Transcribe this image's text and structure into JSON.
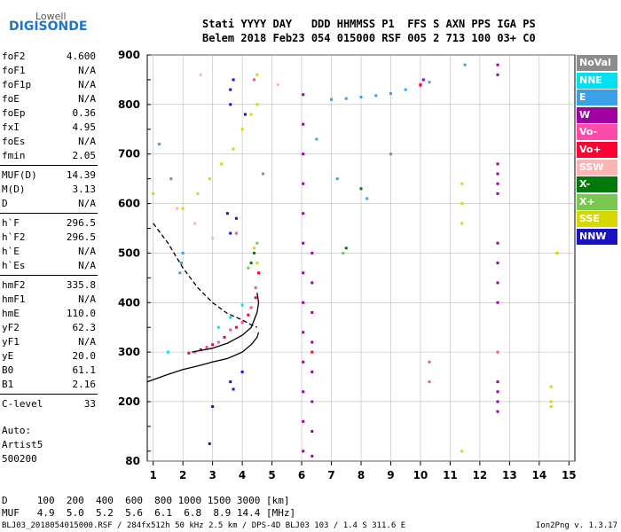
{
  "logo": {
    "line1": "Lowell",
    "line2": "DIGISONDE"
  },
  "header": {
    "row1": "Stati YYYY DAY   DDD HHMMSS P1  FFS S AXN PPS IGA PS",
    "row2": "Belem 2018 Feb23 054 015000 RSF 005 2 713 100 03+ C0"
  },
  "params_group1": [
    {
      "label": "foF2",
      "value": "4.600"
    },
    {
      "label": "foF1",
      "value": "N/A"
    },
    {
      "label": "foF1p",
      "value": "N/A"
    },
    {
      "label": "foE",
      "value": "N/A"
    },
    {
      "label": "foEp",
      "value": "0.36"
    },
    {
      "label": "fxI",
      "value": "4.95"
    },
    {
      "label": "foEs",
      "value": "N/A"
    },
    {
      "label": "fmin",
      "value": "2.05"
    }
  ],
  "params_group2": [
    {
      "label": "MUF(D)",
      "value": "14.39"
    },
    {
      "label": "M(D)",
      "value": "3.13"
    },
    {
      "label": "D",
      "value": "N/A"
    }
  ],
  "params_group3": [
    {
      "label": "h`F",
      "value": "296.5"
    },
    {
      "label": "h`F2",
      "value": "296.5"
    },
    {
      "label": "h`E",
      "value": "N/A"
    },
    {
      "label": "h`Es",
      "value": "N/A"
    }
  ],
  "params_group4": [
    {
      "label": "hmF2",
      "value": "335.8"
    },
    {
      "label": "hmF1",
      "value": "N/A"
    },
    {
      "label": "hmE",
      "value": "110.0"
    },
    {
      "label": "yF2",
      "value": "62.3"
    },
    {
      "label": "yF1",
      "value": "N/A"
    },
    {
      "label": "yE",
      "value": "20.0"
    },
    {
      "label": "B0",
      "value": "61.1"
    },
    {
      "label": "B1",
      "value": "2.16"
    }
  ],
  "params_group5": [
    {
      "label": "C-level",
      "value": "33"
    }
  ],
  "autoscale": {
    "line1": "Auto:",
    "line2": "Artist5",
    "line3": "500200"
  },
  "legend": [
    {
      "label": "NoVal",
      "color": "#8c8c8c"
    },
    {
      "label": "NNE",
      "color": "#00e0f0"
    },
    {
      "label": "E",
      "color": "#3aa0e8"
    },
    {
      "label": "W",
      "color": "#a000a0"
    },
    {
      "label": "Vo-",
      "color": "#ff4aa8"
    },
    {
      "label": "Vo+",
      "color": "#ff0033"
    },
    {
      "label": "SSW",
      "color": "#ffb4b4"
    },
    {
      "label": "X-",
      "color": "#00780a"
    },
    {
      "label": "X+",
      "color": "#78c850"
    },
    {
      "label": "SSE",
      "color": "#d8d800"
    },
    {
      "label": "NNW",
      "color": "#1a12c0"
    }
  ],
  "muf_table": {
    "row1": "D     100  200  400  600  800 1000 1500 3000 [km]",
    "row2": "MUF   4.9  5.0  5.2  5.6  6.1  6.8  8.9 14.4 [MHz]"
  },
  "footer": {
    "left": "BLJ03_2018054015000.RSF / 284fx512h 50 kHz 2.5 km / DPS-4D BLJ03 103 / 1.4 S 311.6 E",
    "right": "Ion2Png v. 1.3.17"
  },
  "chart_data": {
    "type": "scatter",
    "title": "",
    "xlabel": "",
    "ylabel": "",
    "xlim": [
      0.8,
      15.2
    ],
    "ylim": [
      80,
      900
    ],
    "x_ticks": [
      "1",
      "2",
      "3",
      "4",
      "5",
      "6",
      "7",
      "8",
      "9",
      "10",
      "11",
      "12",
      "13",
      "14",
      "15"
    ],
    "y_ticks": [
      "80",
      "200",
      "300",
      "400",
      "500",
      "600",
      "700",
      "800",
      "900"
    ],
    "grid": true,
    "legend_position": "right",
    "series": [
      {
        "name": "E",
        "color": "#3aa0e8",
        "points": [
          [
            7.0,
            810
          ],
          [
            7.5,
            812
          ],
          [
            8.0,
            815
          ],
          [
            8.5,
            818
          ],
          [
            9.0,
            822
          ],
          [
            9.5,
            830
          ],
          [
            10.0,
            838
          ],
          [
            10.3,
            845
          ],
          [
            2.0,
            500
          ],
          [
            1.95,
            480
          ],
          [
            1.9,
            460
          ],
          [
            1.2,
            720
          ],
          [
            11.5,
            880
          ],
          [
            6.5,
            730
          ],
          [
            7.2,
            650
          ],
          [
            8.2,
            610
          ]
        ]
      },
      {
        "name": "W",
        "color": "#a000a0",
        "points": [
          [
            6.05,
            820
          ],
          [
            6.05,
            760
          ],
          [
            6.05,
            700
          ],
          [
            6.05,
            640
          ],
          [
            6.05,
            580
          ],
          [
            6.05,
            520
          ],
          [
            6.05,
            460
          ],
          [
            6.05,
            400
          ],
          [
            6.05,
            340
          ],
          [
            6.05,
            280
          ],
          [
            6.05,
            220
          ],
          [
            6.05,
            160
          ],
          [
            6.05,
            100
          ],
          [
            6.35,
            500
          ],
          [
            6.35,
            440
          ],
          [
            6.35,
            380
          ],
          [
            6.35,
            320
          ],
          [
            6.35,
            260
          ],
          [
            6.35,
            200
          ],
          [
            6.35,
            140
          ],
          [
            6.35,
            90
          ],
          [
            12.6,
            880
          ],
          [
            12.6,
            860
          ],
          [
            12.6,
            680
          ],
          [
            12.6,
            660
          ],
          [
            12.6,
            640
          ],
          [
            12.6,
            620
          ],
          [
            12.6,
            520
          ],
          [
            12.6,
            480
          ],
          [
            12.6,
            440
          ],
          [
            12.6,
            400
          ],
          [
            12.6,
            240
          ],
          [
            12.6,
            220
          ],
          [
            12.6,
            200
          ],
          [
            12.6,
            180
          ],
          [
            10.1,
            850
          ]
        ]
      },
      {
        "name": "Vo-",
        "color": "#ff4aa8",
        "points": [
          [
            2.4,
            300
          ],
          [
            2.8,
            310
          ],
          [
            3.2,
            320
          ],
          [
            3.6,
            345
          ],
          [
            4.0,
            360
          ],
          [
            4.3,
            390
          ],
          [
            4.45,
            430
          ],
          [
            3.8,
            540
          ],
          [
            4.4,
            850
          ],
          [
            10.3,
            240
          ],
          [
            10.3,
            280
          ],
          [
            12.6,
            300
          ]
        ]
      },
      {
        "name": "Vo+",
        "color": "#ff0033",
        "points": [
          [
            2.2,
            298
          ],
          [
            2.6,
            305
          ],
          [
            3.0,
            315
          ],
          [
            3.4,
            330
          ],
          [
            3.8,
            350
          ],
          [
            4.2,
            375
          ],
          [
            4.45,
            410
          ],
          [
            4.55,
            460
          ],
          [
            10.0,
            840
          ],
          [
            6.35,
            300
          ]
        ]
      },
      {
        "name": "SSE",
        "color": "#d8d800",
        "points": [
          [
            1.0,
            620
          ],
          [
            2.0,
            590
          ],
          [
            2.5,
            620
          ],
          [
            2.9,
            650
          ],
          [
            3.3,
            680
          ],
          [
            3.7,
            710
          ],
          [
            4.0,
            750
          ],
          [
            4.3,
            780
          ],
          [
            4.5,
            800
          ],
          [
            4.5,
            860
          ],
          [
            4.4,
            510
          ],
          [
            4.5,
            480
          ],
          [
            11.4,
            640
          ],
          [
            11.4,
            600
          ],
          [
            11.4,
            560
          ],
          [
            11.4,
            100
          ],
          [
            14.4,
            230
          ],
          [
            14.4,
            200
          ],
          [
            14.4,
            190
          ],
          [
            14.6,
            500
          ]
        ]
      },
      {
        "name": "NNW",
        "color": "#1a12c0",
        "points": [
          [
            3.7,
            850
          ],
          [
            3.6,
            830
          ],
          [
            3.6,
            800
          ],
          [
            3.5,
            580
          ],
          [
            3.6,
            540
          ],
          [
            2.9,
            115
          ],
          [
            3.0,
            190
          ],
          [
            3.6,
            240
          ],
          [
            3.7,
            225
          ],
          [
            3.8,
            570
          ],
          [
            4.0,
            260
          ],
          [
            4.1,
            780
          ]
        ]
      },
      {
        "name": "X-",
        "color": "#00780a",
        "points": [
          [
            8.0,
            630
          ],
          [
            7.5,
            510
          ],
          [
            4.3,
            480
          ],
          [
            4.4,
            500
          ]
        ]
      },
      {
        "name": "X+",
        "color": "#78c850",
        "points": [
          [
            7.4,
            500
          ],
          [
            4.2,
            470
          ],
          [
            4.5,
            520
          ]
        ]
      },
      {
        "name": "NNE",
        "color": "#00e0f0",
        "points": [
          [
            3.2,
            350
          ],
          [
            3.6,
            370
          ],
          [
            4.0,
            395
          ],
          [
            1.5,
            300
          ]
        ]
      },
      {
        "name": "SSW",
        "color": "#ffb4b4",
        "points": [
          [
            1.8,
            590
          ],
          [
            2.4,
            560
          ],
          [
            3.0,
            530
          ],
          [
            5.2,
            840
          ],
          [
            2.6,
            860
          ]
        ]
      },
      {
        "name": "NoVal",
        "color": "#8c8c8c",
        "points": [
          [
            1.6,
            650
          ],
          [
            4.7,
            660
          ],
          [
            9.0,
            700
          ]
        ]
      }
    ],
    "profile_curves": [
      {
        "style": "solid",
        "points": [
          [
            0.8,
            240
          ],
          [
            1.5,
            255
          ],
          [
            2.0,
            265
          ],
          [
            2.5,
            272
          ],
          [
            3.0,
            280
          ],
          [
            3.5,
            287
          ],
          [
            4.0,
            300
          ],
          [
            4.3,
            315
          ],
          [
            4.5,
            330
          ],
          [
            4.55,
            340
          ]
        ]
      },
      {
        "style": "solid",
        "points": [
          [
            2.3,
            300
          ],
          [
            3.0,
            308
          ],
          [
            3.5,
            318
          ],
          [
            4.0,
            334
          ],
          [
            4.3,
            350
          ],
          [
            4.5,
            380
          ],
          [
            4.55,
            400
          ],
          [
            4.5,
            420
          ]
        ]
      },
      {
        "style": "dashed",
        "points": [
          [
            1.0,
            560
          ],
          [
            1.5,
            520
          ],
          [
            2.0,
            470
          ],
          [
            2.5,
            430
          ],
          [
            3.0,
            400
          ],
          [
            3.5,
            378
          ],
          [
            4.0,
            365
          ],
          [
            4.3,
            355
          ],
          [
            4.5,
            350
          ]
        ]
      }
    ]
  }
}
